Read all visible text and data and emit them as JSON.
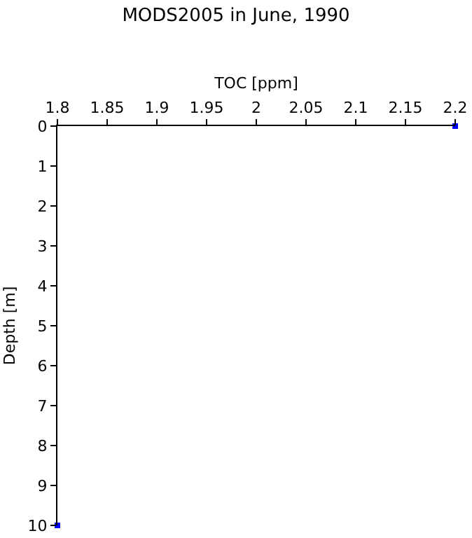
{
  "chart_data": {
    "type": "scatter",
    "title": "MODS2005 in June, 1990",
    "xlabel": "TOC [ppm]",
    "ylabel": "Depth [m]",
    "x": [
      2.2,
      1.8
    ],
    "series": [
      {
        "color": "#0000ff",
        "values": [
          0,
          10
        ]
      }
    ],
    "marker": "square",
    "xlim": [
      1.8,
      2.2
    ],
    "xticks": [
      1.8,
      1.85,
      1.9,
      1.95,
      2,
      2.05,
      2.1,
      2.15,
      2.2
    ],
    "ylim": [
      10,
      0
    ],
    "yticks": [
      0,
      1,
      2,
      3,
      4,
      5,
      6,
      7,
      8,
      9,
      10
    ],
    "grid": false
  }
}
